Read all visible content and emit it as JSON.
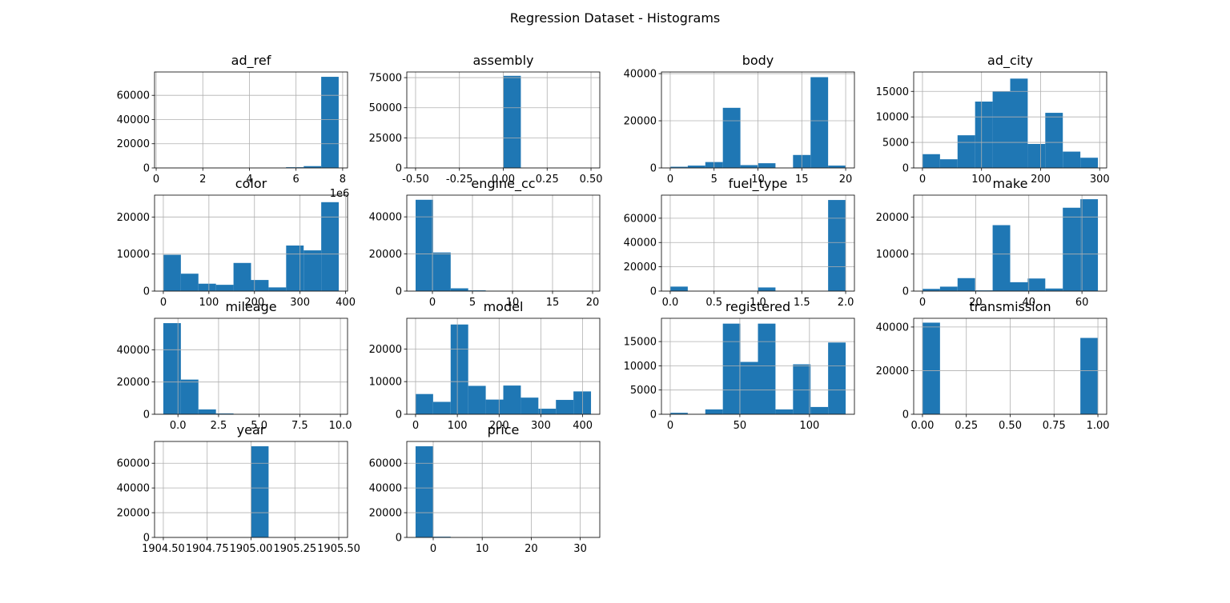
{
  "title": "Regression Dataset - Histograms",
  "chart_data": [
    {
      "type": "histogram",
      "title": "ad_ref",
      "x_offset_label": "1e6",
      "color": "#1f77b4",
      "grid": true,
      "bins": [
        0.31,
        1.06,
        1.81,
        2.57,
        3.32,
        4.07,
        4.82,
        5.57,
        6.33,
        7.08,
        7.83
      ],
      "values": [
        10,
        0,
        0,
        0,
        0,
        0,
        0,
        600,
        1500,
        75300
      ],
      "xlim": [
        -0.07,
        8.21
      ],
      "xticks": [
        0,
        2,
        4,
        6,
        8
      ],
      "ylim": [
        0,
        79300
      ],
      "yticks": [
        0,
        20000,
        40000,
        60000
      ]
    },
    {
      "type": "histogram",
      "title": "assembly",
      "color": "#1f77b4",
      "grid": true,
      "bins": [
        -0.5,
        -0.4,
        -0.3,
        -0.2,
        -0.1,
        0,
        0.1,
        0.2,
        0.3,
        0.4,
        0.5
      ],
      "values": [
        0,
        0,
        0,
        0,
        0,
        76500,
        0,
        0,
        0,
        0
      ],
      "xlim": [
        -0.55,
        0.55
      ],
      "xticks": [
        {
          "value": -0.5,
          "label": "-0.50"
        },
        {
          "value": -0.25,
          "label": "-0.25"
        },
        {
          "value": 0,
          "label": "0.00"
        },
        {
          "value": 0.25,
          "label": "0.25"
        },
        {
          "value": 0.5,
          "label": "0.50"
        }
      ],
      "ylim": [
        0,
        79700
      ],
      "yticks": [
        0,
        25000,
        50000,
        75000
      ]
    },
    {
      "type": "histogram",
      "title": "body",
      "color": "#1f77b4",
      "grid": true,
      "bins": [
        0,
        2,
        4,
        6,
        8,
        10,
        12,
        14,
        16,
        18,
        20
      ],
      "values": [
        500,
        1000,
        2500,
        25500,
        1200,
        2000,
        0,
        5500,
        38500,
        1000
      ],
      "xlim": [
        -1,
        21
      ],
      "xticks": [
        0,
        5,
        10,
        15,
        20
      ],
      "ylim": [
        0,
        40700
      ],
      "yticks": [
        0,
        20000,
        40000
      ]
    },
    {
      "type": "histogram",
      "title": "ad_city",
      "color": "#1f77b4",
      "grid": true,
      "bins": [
        0,
        29.7,
        59.4,
        89.1,
        118.8,
        148.5,
        178.2,
        207.9,
        237.6,
        267.3,
        297
      ],
      "values": [
        2700,
        1700,
        6400,
        13000,
        15000,
        17500,
        4700,
        10800,
        3200,
        2000
      ],
      "xlim": [
        -14.85,
        311.85
      ],
      "xticks": [
        0,
        100,
        200,
        300
      ],
      "ylim": [
        0,
        18800
      ],
      "yticks": [
        0,
        5000,
        10000,
        15000
      ]
    },
    {
      "type": "histogram",
      "title": "color",
      "color": "#1f77b4",
      "grid": true,
      "bins": [
        0,
        38.5,
        77,
        115.5,
        154,
        192.5,
        231,
        269.5,
        308,
        346.5,
        385
      ],
      "values": [
        9800,
        4700,
        2000,
        1700,
        7600,
        3000,
        1000,
        12300,
        11000,
        24000
      ],
      "xlim": [
        -19.25,
        404.25
      ],
      "xticks": [
        0,
        100,
        200,
        300,
        400
      ],
      "ylim": [
        0,
        25900
      ],
      "yticks": [
        0,
        10000,
        20000
      ]
    },
    {
      "type": "histogram",
      "title": "engine_cc",
      "color": "#1f77b4",
      "grid": true,
      "bins": [
        -2.1,
        0.09,
        2.28,
        4.47,
        6.66,
        8.85,
        11.04,
        13.23,
        15.42,
        17.61,
        19.8
      ],
      "values": [
        49200,
        20800,
        1500,
        400,
        100,
        0,
        0,
        0,
        0,
        30
      ],
      "xlim": [
        -3.2,
        20.9
      ],
      "xticks": [
        0,
        5,
        10,
        15,
        20
      ],
      "ylim": [
        0,
        51700
      ],
      "yticks": [
        0,
        20000,
        40000
      ]
    },
    {
      "type": "histogram",
      "title": "fuel_type",
      "color": "#1f77b4",
      "grid": true,
      "bins": [
        0,
        0.2,
        0.4,
        0.6,
        0.8,
        1,
        1.2,
        1.4,
        1.6,
        1.8,
        2
      ],
      "values": [
        3700,
        0,
        0,
        0,
        0,
        3000,
        0,
        0,
        0,
        75000
      ],
      "xlim": [
        -0.1,
        2.1
      ],
      "xticks": [
        {
          "value": 0,
          "label": "0.0"
        },
        0.5,
        {
          "value": 1,
          "label": "1.0"
        },
        1.5,
        {
          "value": 2,
          "label": "2.0"
        }
      ],
      "ylim": [
        0,
        79000
      ],
      "yticks": [
        0,
        20000,
        40000,
        60000
      ]
    },
    {
      "type": "histogram",
      "title": "make",
      "color": "#1f77b4",
      "grid": true,
      "bins": [
        0,
        6.6,
        13.2,
        19.8,
        26.4,
        33,
        39.6,
        46.2,
        52.8,
        59.4,
        66
      ],
      "values": [
        600,
        1200,
        3500,
        200,
        17800,
        2400,
        3400,
        700,
        22500,
        24800
      ],
      "xlim": [
        -3.3,
        69.3
      ],
      "xticks": [
        0,
        20,
        40,
        60
      ],
      "ylim": [
        0,
        25900
      ],
      "yticks": [
        0,
        10000,
        20000
      ]
    },
    {
      "type": "histogram",
      "title": "mileage",
      "color": "#1f77b4",
      "grid": true,
      "bins": [
        -0.9,
        0.18,
        1.26,
        2.34,
        3.42,
        4.5,
        5.58,
        6.66,
        7.74,
        8.82,
        9.9
      ],
      "values": [
        56500,
        21500,
        3000,
        500,
        100,
        0,
        0,
        0,
        0,
        20
      ],
      "xlim": [
        -1.44,
        10.44
      ],
      "xticks": [
        {
          "value": 0,
          "label": "0.0"
        },
        2.5,
        {
          "value": 5,
          "label": "5.0"
        },
        7.5,
        {
          "value": 10,
          "label": "10.0"
        }
      ],
      "ylim": [
        0,
        59500
      ],
      "yticks": [
        0,
        20000,
        40000
      ]
    },
    {
      "type": "histogram",
      "title": "model",
      "color": "#1f77b4",
      "grid": true,
      "bins": [
        0,
        42,
        84,
        126,
        168,
        210,
        252,
        294,
        336,
        378,
        420
      ],
      "values": [
        6200,
        3800,
        27500,
        8700,
        4500,
        8800,
        5100,
        1700,
        4400,
        7000
      ],
      "xlim": [
        -21,
        441
      ],
      "xticks": [
        0,
        100,
        200,
        300,
        400
      ],
      "ylim": [
        0,
        29400
      ],
      "yticks": [
        0,
        10000,
        20000
      ]
    },
    {
      "type": "histogram",
      "title": "registered",
      "color": "#1f77b4",
      "grid": true,
      "bins": [
        0,
        12.6,
        25.2,
        37.8,
        50.4,
        63,
        75.6,
        88.2,
        100.8,
        113.4,
        126
      ],
      "values": [
        300,
        0,
        1000,
        18700,
        10800,
        18700,
        1000,
        10300,
        1500,
        14800
      ],
      "xlim": [
        -6.3,
        132.3
      ],
      "xticks": [
        0,
        50,
        100
      ],
      "ylim": [
        0,
        19800
      ],
      "yticks": [
        0,
        5000,
        10000,
        15000
      ]
    },
    {
      "type": "histogram",
      "title": "transmission",
      "color": "#1f77b4",
      "grid": true,
      "bins": [
        0,
        0.1,
        0.2,
        0.3,
        0.4,
        0.5,
        0.6,
        0.7,
        0.8,
        0.9,
        1
      ],
      "values": [
        42000,
        0,
        0,
        0,
        0,
        0,
        0,
        0,
        0,
        35000
      ],
      "xlim": [
        -0.05,
        1.05
      ],
      "xticks": [
        {
          "value": 0,
          "label": "0.00"
        },
        {
          "value": 0.25,
          "label": "0.25"
        },
        {
          "value": 0.5,
          "label": "0.50"
        },
        {
          "value": 0.75,
          "label": "0.75"
        },
        {
          "value": 1,
          "label": "1.00"
        }
      ],
      "ylim": [
        0,
        44000
      ],
      "yticks": [
        0,
        20000,
        40000
      ]
    },
    {
      "type": "histogram",
      "title": "year",
      "color": "#1f77b4",
      "grid": true,
      "bins": [
        1904.5,
        1904.6,
        1904.7,
        1904.8,
        1904.9,
        1905,
        1905.1,
        1905.2,
        1905.3,
        1905.4,
        1905.5
      ],
      "values": [
        0,
        0,
        0,
        0,
        0,
        73700,
        0,
        0,
        0,
        0
      ],
      "xlim": [
        1904.45,
        1905.55
      ],
      "xticks": [
        {
          "value": 1904.5,
          "label": "1904.50"
        },
        {
          "value": 1904.75,
          "label": "1904.75"
        },
        {
          "value": 1905,
          "label": "1905.00"
        },
        {
          "value": 1905.25,
          "label": "1905.25"
        },
        {
          "value": 1905.5,
          "label": "1905.50"
        }
      ],
      "ylim": [
        0,
        77600
      ],
      "yticks": [
        0,
        20000,
        40000,
        60000
      ]
    },
    {
      "type": "histogram",
      "title": "price",
      "color": "#1f77b4",
      "grid": true,
      "bins": [
        -3.6,
        -0.02,
        3.56,
        7.14,
        10.72,
        14.3,
        17.88,
        21.46,
        25.04,
        28.62,
        32.2
      ],
      "values": [
        73700,
        600,
        100,
        30,
        0,
        0,
        0,
        0,
        0,
        10
      ],
      "xlim": [
        -5.39,
        33.99
      ],
      "xticks": [
        0,
        10,
        20,
        30
      ],
      "ylim": [
        0,
        77600
      ],
      "yticks": [
        0,
        20000,
        40000,
        60000
      ]
    }
  ]
}
